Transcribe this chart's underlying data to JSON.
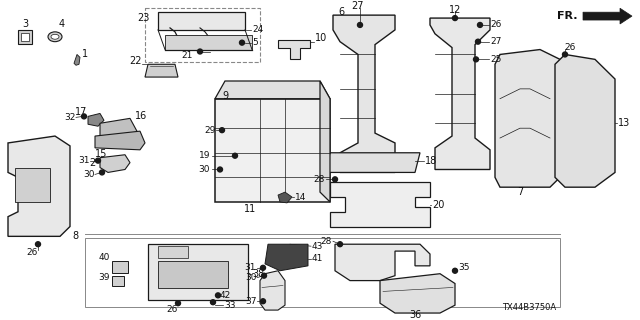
{
  "bg": "#ffffff",
  "lc": "#1a1a1a",
  "tc": "#111111",
  "fig_w": 6.4,
  "fig_h": 3.2,
  "dpi": 100,
  "diagram_id": "TX44B3750A"
}
